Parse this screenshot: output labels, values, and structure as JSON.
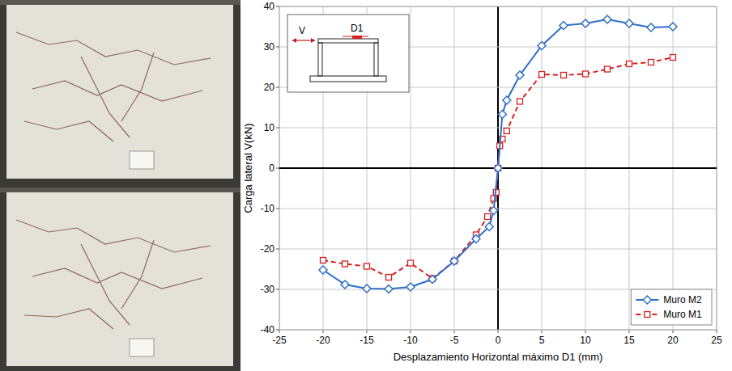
{
  "chart_data": {
    "type": "line",
    "x_label": "Desplazamiento Horizontal máximo D1 (mm)",
    "y_label": "Carga lateral V(kN)",
    "annotations": [
      "V",
      "D1"
    ],
    "xlim": [
      -25,
      25
    ],
    "xticks": [
      -25,
      -20,
      -15,
      -10,
      -5,
      0,
      5,
      10,
      15,
      20,
      25
    ],
    "ylim": [
      -40,
      40
    ],
    "yticks": [
      -40,
      -30,
      -20,
      -10,
      0,
      10,
      20,
      30,
      40
    ],
    "grid": true,
    "legend": "lower right",
    "series": [
      {
        "name": "Muro M2",
        "color": "#2e6fc7",
        "marker": "diamond",
        "line_style": "solid",
        "x": [
          -20,
          -17.5,
          -15,
          -12.5,
          -10,
          -7.5,
          -5,
          -2.5,
          -1,
          -0.5,
          0,
          0.5,
          1,
          2.5,
          5,
          7.5,
          10,
          12.5,
          15,
          17.5,
          20
        ],
        "values": [
          -25.2,
          -28.8,
          -29.8,
          -29.9,
          -29.4,
          -27.5,
          -23,
          -17.5,
          -14.5,
          -10.5,
          0,
          13.3,
          16.8,
          23,
          30.3,
          35.3,
          35.8,
          36.8,
          35.8,
          34.8,
          35
        ]
      },
      {
        "name": "Muro M1",
        "color": "#d42020",
        "marker": "square",
        "line_style": "dashed",
        "x": [
          -20,
          -17.5,
          -15,
          -12.5,
          -10,
          -7.5,
          -5,
          -2.5,
          -1.2,
          -0.5,
          -0.2,
          0,
          0.2,
          0.5,
          1,
          2.5,
          5,
          7.5,
          10,
          12.5,
          15,
          17.5,
          20
        ],
        "values": [
          -22.8,
          -23.7,
          -24.3,
          -27,
          -23.5,
          -27.3,
          -23,
          -16.5,
          -12,
          -7.5,
          -6,
          0,
          5.5,
          7.2,
          9.2,
          16.5,
          23.2,
          23,
          23.3,
          24.5,
          25.8,
          26.2,
          27.4
        ]
      }
    ]
  }
}
